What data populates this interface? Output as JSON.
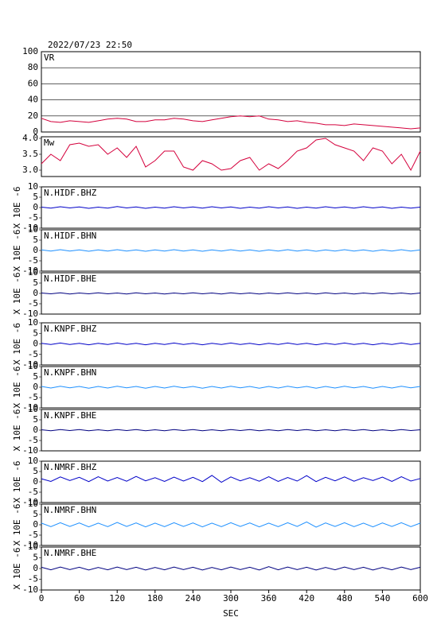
{
  "chart_data": [
    {
      "type": "line",
      "title": "2022/07/23 22:50",
      "x": [
        0,
        15,
        30,
        45,
        60,
        75,
        90,
        105,
        120,
        135,
        150,
        165,
        180,
        195,
        210,
        225,
        240,
        255,
        270,
        285,
        300,
        315,
        330,
        345,
        360,
        375,
        390,
        405,
        420,
        435,
        450,
        465,
        480,
        495,
        510,
        525,
        540,
        555,
        570,
        585,
        600
      ],
      "xlim": [
        0,
        600
      ],
      "ylim": [
        0,
        100
      ],
      "yticks": [
        0,
        20,
        40,
        60,
        80,
        100
      ],
      "grid": true,
      "series": [
        {
          "name": "VR",
          "color": "#d4003c",
          "values": [
            17,
            13,
            12,
            14,
            13,
            12,
            14,
            16,
            17,
            16,
            13,
            13,
            15,
            15,
            17,
            16,
            14,
            13,
            15,
            17,
            19,
            20,
            19,
            20,
            16,
            15,
            13,
            14,
            12,
            11,
            9,
            9,
            8,
            10,
            9,
            8,
            7,
            6,
            5,
            4,
            5
          ]
        }
      ]
    },
    {
      "type": "line",
      "x": [
        0,
        15,
        30,
        45,
        60,
        75,
        90,
        105,
        120,
        135,
        150,
        165,
        180,
        195,
        210,
        225,
        240,
        255,
        270,
        285,
        300,
        315,
        330,
        345,
        360,
        375,
        390,
        405,
        420,
        435,
        450,
        465,
        480,
        495,
        510,
        525,
        540,
        555,
        570,
        585,
        600
      ],
      "xlim": [
        0,
        600
      ],
      "ylim": [
        2.8,
        4.05
      ],
      "yticks": [
        {
          "value": 3,
          "label": "3.0"
        },
        {
          "value": 3.5,
          "label": "3.5"
        },
        {
          "value": 4,
          "label": "4.0"
        }
      ],
      "grid": false,
      "series": [
        {
          "name": "Mw",
          "color": "#d4003c",
          "values": [
            3.2,
            3.5,
            3.3,
            3.8,
            3.85,
            3.75,
            3.8,
            3.5,
            3.7,
            3.4,
            3.75,
            3.1,
            3.3,
            3.6,
            3.6,
            3.1,
            3.0,
            3.3,
            3.2,
            3.0,
            3.05,
            3.3,
            3.4,
            3.0,
            3.2,
            3.05,
            3.3,
            3.6,
            3.7,
            3.95,
            4.0,
            3.8,
            3.7,
            3.6,
            3.3,
            3.7,
            3.6,
            3.2,
            3.5,
            3.0,
            3.6
          ]
        }
      ]
    },
    {
      "type": "line",
      "ylabel": "X 10E -6",
      "x": [
        0,
        15,
        30,
        45,
        60,
        75,
        90,
        105,
        120,
        135,
        150,
        165,
        180,
        195,
        210,
        225,
        240,
        255,
        270,
        285,
        300,
        315,
        330,
        345,
        360,
        375,
        390,
        405,
        420,
        435,
        450,
        465,
        480,
        495,
        510,
        525,
        540,
        555,
        570,
        585,
        600
      ],
      "xlim": [
        0,
        600
      ],
      "ylim": [
        -10,
        10
      ],
      "yticks": [
        -10,
        -5,
        0,
        5,
        10
      ],
      "grid": false,
      "series": [
        {
          "name": "N.HIDF.BHZ",
          "color": "#0000c8",
          "values": [
            0.2,
            -0.3,
            0.4,
            -0.2,
            0.3,
            -0.4,
            0.2,
            -0.3,
            0.5,
            -0.2,
            0.3,
            -0.4,
            0.2,
            -0.3,
            0.4,
            -0.2,
            0.3,
            -0.3,
            0.4,
            -0.2,
            0.3,
            -0.4,
            0.2,
            -0.3,
            0.4,
            -0.2,
            0.3,
            -0.4,
            0.2,
            -0.3,
            0.4,
            -0.2,
            0.3,
            -0.3,
            0.4,
            -0.2,
            0.3,
            -0.4,
            0.2,
            -0.3,
            0.2
          ]
        }
      ]
    },
    {
      "type": "line",
      "ylabel": "X 10E -6",
      "x": [
        0,
        15,
        30,
        45,
        60,
        75,
        90,
        105,
        120,
        135,
        150,
        165,
        180,
        195,
        210,
        225,
        240,
        255,
        270,
        285,
        300,
        315,
        330,
        345,
        360,
        375,
        390,
        405,
        420,
        435,
        450,
        465,
        480,
        495,
        510,
        525,
        540,
        555,
        570,
        585,
        600
      ],
      "xlim": [
        0,
        600
      ],
      "ylim": [
        -10,
        10
      ],
      "yticks": [
        -10,
        -5,
        0,
        5,
        10
      ],
      "grid": false,
      "series": [
        {
          "name": "N.HIDF.BHN",
          "color": "#1e90ff",
          "values": [
            0.3,
            -0.3,
            0.4,
            -0.3,
            0.3,
            -0.4,
            0.3,
            -0.3,
            0.4,
            -0.3,
            0.3,
            -0.4,
            0.3,
            -0.3,
            0.4,
            -0.3,
            0.3,
            -0.4,
            0.3,
            -0.3,
            0.4,
            -0.3,
            0.3,
            -0.4,
            0.3,
            -0.3,
            0.4,
            -0.3,
            0.3,
            -0.4,
            0.3,
            -0.3,
            0.4,
            -0.3,
            0.3,
            -0.4,
            0.3,
            -0.3,
            0.4,
            -0.3,
            0.3
          ]
        }
      ]
    },
    {
      "type": "line",
      "ylabel": "X 10E -6",
      "x": [
        0,
        15,
        30,
        45,
        60,
        75,
        90,
        105,
        120,
        135,
        150,
        165,
        180,
        195,
        210,
        225,
        240,
        255,
        270,
        285,
        300,
        315,
        330,
        345,
        360,
        375,
        390,
        405,
        420,
        435,
        450,
        465,
        480,
        495,
        510,
        525,
        540,
        555,
        570,
        585,
        600
      ],
      "xlim": [
        0,
        600
      ],
      "ylim": [
        -10,
        10
      ],
      "yticks": [
        -10,
        -5,
        0,
        5,
        10
      ],
      "grid": false,
      "series": [
        {
          "name": "N.HIDF.BHE",
          "color": "#000080",
          "values": [
            0.2,
            -0.2,
            0.3,
            -0.3,
            0.2,
            -0.2,
            0.3,
            -0.2,
            0.2,
            -0.3,
            0.3,
            -0.2,
            0.2,
            -0.3,
            0.2,
            -0.2,
            0.3,
            -0.2,
            0.2,
            -0.3,
            0.3,
            -0.2,
            0.2,
            -0.3,
            0.2,
            -0.2,
            0.3,
            -0.2,
            0.2,
            -0.3,
            0.3,
            -0.2,
            0.2,
            -0.3,
            0.2,
            -0.2,
            0.3,
            -0.2,
            0.2,
            -0.3,
            0.2
          ]
        }
      ]
    },
    {
      "type": "line",
      "ylabel": "X 10E -6",
      "x": [
        0,
        15,
        30,
        45,
        60,
        75,
        90,
        105,
        120,
        135,
        150,
        165,
        180,
        195,
        210,
        225,
        240,
        255,
        270,
        285,
        300,
        315,
        330,
        345,
        360,
        375,
        390,
        405,
        420,
        435,
        450,
        465,
        480,
        495,
        510,
        525,
        540,
        555,
        570,
        585,
        600
      ],
      "xlim": [
        0,
        600
      ],
      "ylim": [
        -10,
        10
      ],
      "yticks": [
        -10,
        -5,
        0,
        5,
        10
      ],
      "grid": false,
      "series": [
        {
          "name": "N.KNPF.BHZ",
          "color": "#0000c8",
          "values": [
            0.3,
            -0.3,
            0.4,
            -0.3,
            0.3,
            -0.4,
            0.3,
            -0.3,
            0.4,
            -0.3,
            0.3,
            -0.4,
            0.3,
            -0.3,
            0.4,
            -0.3,
            0.3,
            -0.4,
            0.3,
            -0.3,
            0.4,
            -0.3,
            0.3,
            -0.4,
            0.3,
            -0.3,
            0.4,
            -0.3,
            0.3,
            -0.4,
            0.3,
            -0.3,
            0.4,
            -0.3,
            0.3,
            -0.4,
            0.3,
            -0.3,
            0.4,
            -0.3,
            0.3
          ]
        }
      ]
    },
    {
      "type": "line",
      "ylabel": "X 10E -6",
      "x": [
        0,
        15,
        30,
        45,
        60,
        75,
        90,
        105,
        120,
        135,
        150,
        165,
        180,
        195,
        210,
        225,
        240,
        255,
        270,
        285,
        300,
        315,
        330,
        345,
        360,
        375,
        390,
        405,
        420,
        435,
        450,
        465,
        480,
        495,
        510,
        525,
        540,
        555,
        570,
        585,
        600
      ],
      "xlim": [
        0,
        600
      ],
      "ylim": [
        -10,
        10
      ],
      "yticks": [
        -10,
        -5,
        0,
        5,
        10
      ],
      "grid": false,
      "series": [
        {
          "name": "N.KNPF.BHN",
          "color": "#1e90ff",
          "values": [
            0.4,
            -0.4,
            0.5,
            -0.3,
            0.4,
            -0.5,
            0.4,
            -0.4,
            0.5,
            -0.3,
            0.4,
            -0.5,
            0.4,
            -0.4,
            0.5,
            -0.3,
            0.4,
            -0.5,
            0.4,
            -0.4,
            0.5,
            -0.3,
            0.4,
            -0.5,
            0.4,
            -0.4,
            0.5,
            -0.3,
            0.4,
            -0.5,
            0.4,
            -0.4,
            0.5,
            -0.3,
            0.4,
            -0.5,
            0.4,
            -0.4,
            0.5,
            -0.3,
            0.4
          ]
        }
      ]
    },
    {
      "type": "line",
      "ylabel": "X 10E -6",
      "x": [
        0,
        15,
        30,
        45,
        60,
        75,
        90,
        105,
        120,
        135,
        150,
        165,
        180,
        195,
        210,
        225,
        240,
        255,
        270,
        285,
        300,
        315,
        330,
        345,
        360,
        375,
        390,
        405,
        420,
        435,
        450,
        465,
        480,
        495,
        510,
        525,
        540,
        555,
        570,
        585,
        600
      ],
      "xlim": [
        0,
        600
      ],
      "ylim": [
        -10,
        10
      ],
      "yticks": [
        -10,
        -5,
        0,
        5,
        10
      ],
      "grid": false,
      "series": [
        {
          "name": "N.KNPF.BHE",
          "color": "#000080",
          "values": [
            0.2,
            -0.3,
            0.3,
            -0.2,
            0.3,
            -0.3,
            0.2,
            -0.3,
            0.3,
            -0.2,
            0.3,
            -0.3,
            0.2,
            -0.3,
            0.3,
            -0.2,
            0.3,
            -0.3,
            0.2,
            -0.3,
            0.3,
            -0.2,
            0.3,
            -0.3,
            0.2,
            -0.3,
            0.3,
            -0.2,
            0.3,
            -0.3,
            0.2,
            -0.3,
            0.3,
            -0.2,
            0.3,
            -0.3,
            0.2,
            -0.3,
            0.3,
            -0.2,
            0.2
          ]
        }
      ]
    },
    {
      "type": "line",
      "ylabel": "X 10E -6",
      "x": [
        0,
        15,
        30,
        45,
        60,
        75,
        90,
        105,
        120,
        135,
        150,
        165,
        180,
        195,
        210,
        225,
        240,
        255,
        270,
        285,
        300,
        315,
        330,
        345,
        360,
        375,
        390,
        405,
        420,
        435,
        450,
        465,
        480,
        495,
        510,
        525,
        540,
        555,
        570,
        585,
        600
      ],
      "xlim": [
        0,
        600
      ],
      "ylim": [
        -10,
        10
      ],
      "yticks": [
        -10,
        -5,
        0,
        5,
        10
      ],
      "grid": false,
      "series": [
        {
          "name": "N.NMRF.BHZ",
          "color": "#0000c8",
          "values": [
            1.5,
            0.2,
            2.4,
            0.6,
            2.2,
            0.1,
            2.5,
            0.4,
            2.1,
            0.3,
            2.6,
            0.5,
            2.0,
            0.2,
            2.3,
            0.4,
            2.2,
            0.1,
            3.1,
            -0.2,
            2.4,
            0.5,
            2.0,
            0.3,
            2.5,
            0.2,
            2.1,
            0.4,
            3.0,
            0.1,
            2.2,
            0.5,
            2.4,
            0.3,
            2.0,
            0.6,
            2.3,
            0.2,
            2.5,
            0.4,
            1.6
          ]
        }
      ]
    },
    {
      "type": "line",
      "ylabel": "X 10E -6",
      "x": [
        0,
        15,
        30,
        45,
        60,
        75,
        90,
        105,
        120,
        135,
        150,
        165,
        180,
        195,
        210,
        225,
        240,
        255,
        270,
        285,
        300,
        315,
        330,
        345,
        360,
        375,
        390,
        405,
        420,
        435,
        450,
        465,
        480,
        495,
        510,
        525,
        540,
        555,
        570,
        585,
        600
      ],
      "xlim": [
        0,
        600
      ],
      "ylim": [
        -10,
        10
      ],
      "yticks": [
        -10,
        -5,
        0,
        5,
        10
      ],
      "grid": false,
      "series": [
        {
          "name": "N.NMRF.BHN",
          "color": "#1e90ff",
          "values": [
            0.8,
            -0.9,
            1.0,
            -0.8,
            0.9,
            -1.0,
            0.8,
            -0.9,
            1.1,
            -0.8,
            0.9,
            -1.0,
            0.8,
            -0.9,
            1.0,
            -0.8,
            0.9,
            -1.0,
            0.8,
            -0.9,
            1.0,
            -0.8,
            0.9,
            -1.0,
            0.8,
            -0.9,
            1.0,
            -0.8,
            1.4,
            -1.1,
            0.9,
            -0.8,
            1.0,
            -0.9,
            0.8,
            -1.0,
            0.9,
            -0.8,
            1.0,
            -0.9,
            0.8
          ]
        }
      ]
    },
    {
      "type": "line",
      "ylabel": "X 10E -6",
      "xlabel": "SEC",
      "x": [
        0,
        15,
        30,
        45,
        60,
        75,
        90,
        105,
        120,
        135,
        150,
        165,
        180,
        195,
        210,
        225,
        240,
        255,
        270,
        285,
        300,
        315,
        330,
        345,
        360,
        375,
        390,
        405,
        420,
        435,
        450,
        465,
        480,
        495,
        510,
        525,
        540,
        555,
        570,
        585,
        600
      ],
      "xlim": [
        0,
        600
      ],
      "xticks": [
        0,
        60,
        120,
        180,
        240,
        300,
        360,
        420,
        480,
        540,
        600
      ],
      "ylim": [
        -10,
        10
      ],
      "yticks": [
        -10,
        -5,
        0,
        5,
        10
      ],
      "grid": false,
      "series": [
        {
          "name": "N.NMRF.BHE",
          "color": "#000080",
          "values": [
            0.6,
            -0.6,
            0.7,
            -0.5,
            0.6,
            -0.7,
            0.5,
            -0.6,
            0.7,
            -0.5,
            0.6,
            -0.7,
            0.5,
            -0.6,
            0.7,
            -0.5,
            0.6,
            -0.7,
            0.5,
            -0.6,
            0.7,
            -0.5,
            0.6,
            -0.7,
            0.9,
            -0.6,
            0.7,
            -0.5,
            0.6,
            -0.7,
            0.5,
            -0.6,
            0.7,
            -0.5,
            0.6,
            -0.7,
            0.5,
            -0.6,
            0.7,
            -0.5,
            0.6
          ]
        }
      ]
    }
  ]
}
